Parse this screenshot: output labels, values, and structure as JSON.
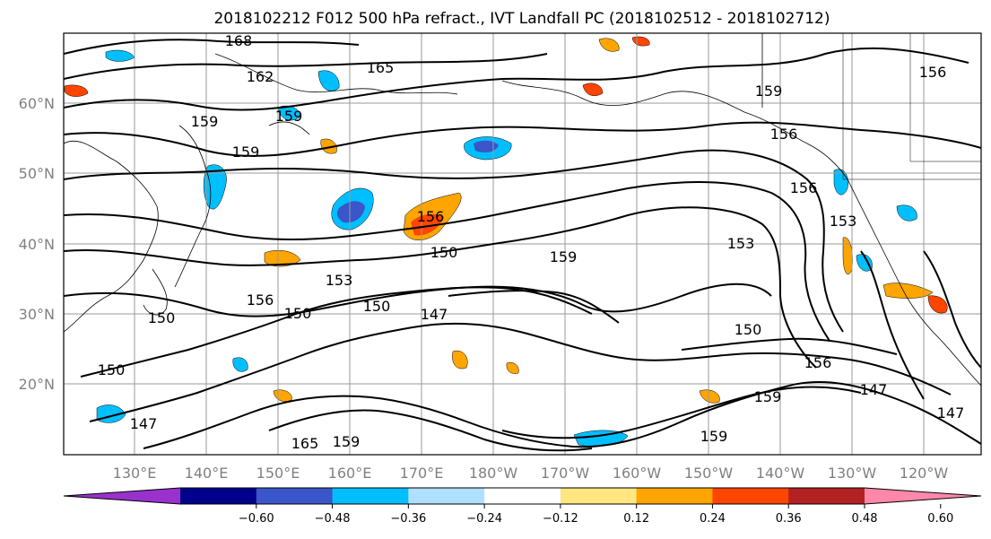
{
  "title": "2018102212 F012 500 hPa refract., IVT Landfall PC (2018102512 - 2018102712)",
  "lon_labels": [
    "130°E",
    "140°E",
    "150°E",
    "160°E",
    "170°E",
    "180°W",
    "170°W",
    "160°W",
    "150°W",
    "140°W",
    "130°W",
    "120°W"
  ],
  "lat_labels": [
    "60°N",
    "50°N",
    "40°N",
    "30°N",
    "20°N"
  ],
  "colorbar": {
    "colors": [
      "#9932cc",
      "#00008b",
      "#3a56c8",
      "#00bfff",
      "#b0e0ff",
      "#ffffff",
      "#ffe680",
      "#ffa500",
      "#ff4500",
      "#b22222",
      "#ff88aa"
    ],
    "tick_labels": [
      "−0.60",
      "−0.48",
      "−0.36",
      "−0.24",
      "−0.12",
      "0.12",
      "0.24",
      "0.36",
      "0.48",
      "0.60"
    ]
  },
  "contour_labels": [
    "168",
    "165",
    "162",
    "159",
    "159",
    "159",
    "156",
    "156",
    "159",
    "156",
    "153",
    "150",
    "153",
    "150",
    "150",
    "159",
    "147",
    "150",
    "153",
    "156",
    "150",
    "150",
    "147",
    "156",
    "147",
    "159",
    "165",
    "159",
    "147",
    "156",
    "159"
  ]
}
